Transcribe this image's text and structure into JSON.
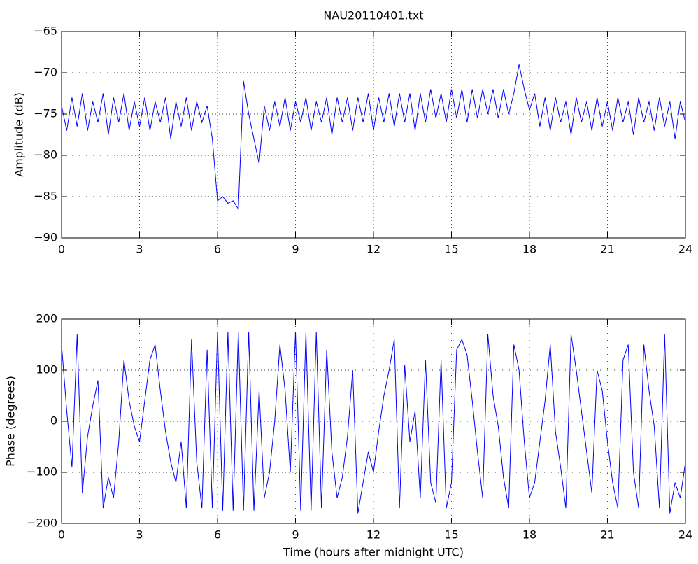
{
  "chart_data": [
    {
      "type": "line",
      "title": "NAU20110401.txt",
      "y_label": "Amplitude (dB)",
      "grid": true,
      "x": [
        0,
        0.2,
        0.4,
        0.6,
        0.8,
        1,
        1.2,
        1.4,
        1.6,
        1.8,
        2,
        2.2,
        2.4,
        2.6,
        2.8,
        3,
        3.2,
        3.4,
        3.6,
        3.8,
        4,
        4.2,
        4.4,
        4.6,
        4.8,
        5,
        5.2,
        5.4,
        5.6,
        5.8,
        6,
        6.2,
        6.4,
        6.6,
        6.8,
        7,
        7.2,
        7.4,
        7.6,
        7.8,
        8,
        8.2,
        8.4,
        8.6,
        8.8,
        9,
        9.2,
        9.4,
        9.6,
        9.8,
        10,
        10.2,
        10.4,
        10.6,
        10.8,
        11,
        11.2,
        11.4,
        11.6,
        11.8,
        12,
        12.2,
        12.4,
        12.6,
        12.8,
        13,
        13.2,
        13.4,
        13.6,
        13.8,
        14,
        14.2,
        14.4,
        14.6,
        14.8,
        15,
        15.2,
        15.4,
        15.6,
        15.8,
        16,
        16.2,
        16.4,
        16.6,
        16.8,
        17,
        17.2,
        17.4,
        17.6,
        17.8,
        18,
        18.2,
        18.4,
        18.6,
        18.8,
        19,
        19.2,
        19.4,
        19.6,
        19.8,
        20,
        20.2,
        20.4,
        20.6,
        20.8,
        21,
        21.2,
        21.4,
        21.6,
        21.8,
        22,
        22.2,
        22.4,
        22.6,
        22.8,
        23,
        23.2,
        23.4,
        23.6,
        23.8,
        24
      ],
      "series": [
        {
          "color": "#0000ff",
          "values": [
            -74,
            -77,
            -73,
            -76.5,
            -72.5,
            -77,
            -73.5,
            -76,
            -72.5,
            -77.5,
            -73,
            -76,
            -72.5,
            -77,
            -73.5,
            -76.5,
            -73,
            -77,
            -73.5,
            -76,
            -73,
            -78,
            -73.5,
            -76.5,
            -73,
            -77,
            -73.5,
            -76,
            -74,
            -78,
            -85.5,
            -85,
            -85.8,
            -85.5,
            -86.5,
            -71,
            -75,
            -78,
            -81,
            -74,
            -77,
            -73.5,
            -76.5,
            -73,
            -77,
            -73.5,
            -76,
            -73,
            -77,
            -73.5,
            -76,
            -73,
            -77.5,
            -73,
            -76,
            -73,
            -77,
            -73,
            -76,
            -72.5,
            -77,
            -73,
            -76,
            -72.5,
            -76.5,
            -72.5,
            -76,
            -72.5,
            -77,
            -72.5,
            -76,
            -72,
            -75.5,
            -72.5,
            -76,
            -72,
            -75.5,
            -72,
            -76,
            -72,
            -75.5,
            -72,
            -75,
            -72,
            -75.5,
            -72,
            -75,
            -72.5,
            -69,
            -72,
            -74.5,
            -72.5,
            -76.5,
            -73,
            -77,
            -73,
            -76,
            -73.5,
            -77.5,
            -73,
            -76,
            -73.5,
            -77,
            -73,
            -76.5,
            -73.5,
            -77,
            -73,
            -76,
            -73.5,
            -77.5,
            -73,
            -76,
            -73.5,
            -77,
            -73,
            -76.5,
            -73.5,
            -78,
            -73.5,
            -76
          ]
        }
      ],
      "xlim": [
        0,
        24
      ],
      "xticks": [
        0,
        3,
        6,
        9,
        12,
        15,
        18,
        21,
        24
      ],
      "ylim": [
        -90,
        -65
      ],
      "yticks": [
        {
          "value": -90,
          "label": "−90"
        },
        {
          "value": -85,
          "label": "−85"
        },
        {
          "value": -80,
          "label": "−80"
        },
        {
          "value": -75,
          "label": "−75"
        },
        {
          "value": -70,
          "label": "−70"
        },
        {
          "value": -65,
          "label": "−65"
        }
      ]
    },
    {
      "type": "line",
      "x_label": "Time (hours after midnight UTC)",
      "y_label": "Phase (degrees)",
      "grid": true,
      "x": [
        0,
        0.2,
        0.4,
        0.6,
        0.8,
        1,
        1.2,
        1.4,
        1.6,
        1.8,
        2,
        2.2,
        2.4,
        2.6,
        2.8,
        3,
        3.2,
        3.4,
        3.6,
        3.8,
        4,
        4.2,
        4.4,
        4.6,
        4.8,
        5,
        5.2,
        5.4,
        5.6,
        5.8,
        6,
        6.2,
        6.4,
        6.6,
        6.8,
        7,
        7.2,
        7.4,
        7.6,
        7.8,
        8,
        8.2,
        8.4,
        8.6,
        8.8,
        9,
        9.2,
        9.4,
        9.6,
        9.8,
        10,
        10.2,
        10.4,
        10.6,
        10.8,
        11,
        11.2,
        11.4,
        11.6,
        11.8,
        12,
        12.2,
        12.4,
        12.6,
        12.8,
        13,
        13.2,
        13.4,
        13.6,
        13.8,
        14,
        14.2,
        14.4,
        14.6,
        14.8,
        15,
        15.2,
        15.4,
        15.6,
        15.8,
        16,
        16.2,
        16.4,
        16.6,
        16.8,
        17,
        17.2,
        17.4,
        17.6,
        17.8,
        18,
        18.2,
        18.4,
        18.6,
        18.8,
        19,
        19.2,
        19.4,
        19.6,
        19.8,
        20,
        20.2,
        20.4,
        20.6,
        20.8,
        21,
        21.2,
        21.4,
        21.6,
        21.8,
        22,
        22.2,
        22.4,
        22.6,
        22.8,
        23,
        23.2,
        23.4,
        23.6,
        23.8,
        24
      ],
      "series": [
        {
          "color": "#0000ff",
          "values": [
            150,
            20,
            -90,
            170,
            -140,
            -30,
            30,
            80,
            -170,
            -110,
            -150,
            -40,
            120,
            40,
            -10,
            -40,
            40,
            120,
            150,
            60,
            -20,
            -80,
            -120,
            -40,
            -170,
            160,
            -80,
            -170,
            140,
            -170,
            175,
            -175,
            175,
            -175,
            175,
            -175,
            175,
            -175,
            60,
            -150,
            -100,
            0,
            150,
            60,
            -100,
            175,
            -175,
            175,
            -175,
            175,
            -170,
            140,
            -60,
            -150,
            -110,
            -30,
            100,
            -180,
            -120,
            -60,
            -100,
            -20,
            50,
            100,
            160,
            -170,
            110,
            -40,
            20,
            -150,
            120,
            -120,
            -160,
            120,
            -170,
            -120,
            140,
            160,
            130,
            40,
            -60,
            -150,
            170,
            50,
            -10,
            -110,
            -170,
            150,
            100,
            -40,
            -150,
            -120,
            -40,
            40,
            150,
            -20,
            -90,
            -170,
            170,
            100,
            20,
            -60,
            -140,
            100,
            60,
            -40,
            -120,
            -170,
            120,
            150,
            -100,
            -170,
            150,
            60,
            -10,
            -170,
            170,
            -180,
            -120,
            -150,
            -80
          ]
        }
      ],
      "xlim": [
        0,
        24
      ],
      "xticks": [
        0,
        3,
        6,
        9,
        12,
        15,
        18,
        21,
        24
      ],
      "ylim": [
        -200,
        200
      ],
      "yticks": [
        {
          "value": -200,
          "label": "−200"
        },
        {
          "value": -100,
          "label": "−100"
        },
        0,
        100,
        200
      ]
    }
  ]
}
